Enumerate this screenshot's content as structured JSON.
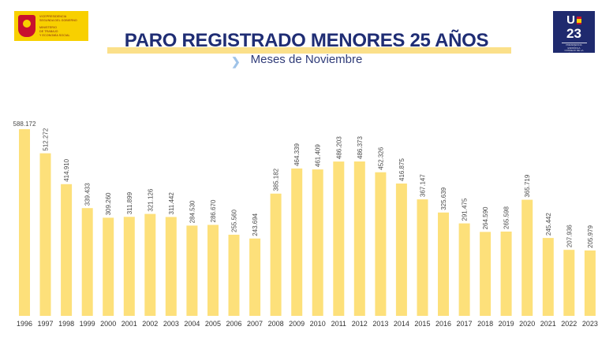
{
  "header": {
    "ministry_lines": [
      "VICEPRESIDENCIA",
      "SEGUNDA DEL GOBIERNO",
      "MINISTERIO",
      "DE TRABAJO",
      "Y ECONOMÍA SOCIAL"
    ],
    "badge_top": "U",
    "badge_year": "23",
    "badge_small": [
      "PRESIDENCIA",
      "ESPAÑOLA",
      "CONSEJO DE LA",
      "UNIÓN EUROPEA"
    ]
  },
  "colors": {
    "bar": "#fde07a",
    "title": "#1f2d74",
    "accent_bar": "#fbe08a",
    "badge": "#1f2a6e"
  },
  "chart_data": {
    "type": "bar",
    "title": "PARO REGISTRADO MENORES 25 AÑOS",
    "subtitle": "Meses de Noviembre",
    "categories": [
      "1996",
      "1997",
      "1998",
      "1999",
      "2000",
      "2001",
      "2002",
      "2003",
      "2004",
      "2005",
      "2006",
      "2007",
      "2008",
      "2009",
      "2010",
      "2011",
      "2012",
      "2013",
      "2014",
      "2015",
      "2016",
      "2017",
      "2018",
      "2019",
      "2020",
      "2021",
      "2022",
      "2023"
    ],
    "values": [
      588172,
      512272,
      414910,
      339433,
      309260,
      311899,
      321126,
      311442,
      284530,
      286670,
      255560,
      243694,
      385182,
      464339,
      461409,
      486203,
      486373,
      452326,
      416875,
      367147,
      325639,
      291475,
      264590,
      265598,
      365719,
      245442,
      207936,
      205979
    ],
    "value_labels": [
      "588.172",
      "512.272",
      "414.910",
      "339.433",
      "309.260",
      "311.899",
      "321.126",
      "311.442",
      "284.530",
      "286.670",
      "255.560",
      "243.694",
      "385.182",
      "464.339",
      "461.409",
      "486.203",
      "486.373",
      "452.326",
      "416.875",
      "367.147",
      "325.639",
      "291.475",
      "264.590",
      "265.598",
      "365.719",
      "245.442",
      "207.936",
      "205.979"
    ],
    "ylim": [
      0,
      600000
    ],
    "grid": false,
    "xlabel": "",
    "ylabel": ""
  }
}
